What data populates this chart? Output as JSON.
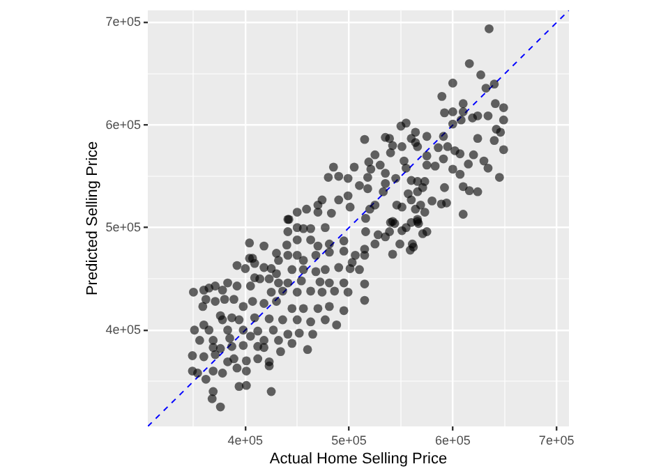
{
  "chart_data": {
    "type": "scatter",
    "xlabel": "Actual Home Selling Price",
    "ylabel": "Predicted Selling Price",
    "xlim": [
      306000,
      712000
    ],
    "ylim": [
      306000,
      712000
    ],
    "xticks": [
      {
        "value": 350000,
        "label": null
      },
      {
        "value": 400000,
        "label": "4e+05"
      },
      {
        "value": 450000,
        "label": null
      },
      {
        "value": 500000,
        "label": "5e+05"
      },
      {
        "value": 550000,
        "label": null
      },
      {
        "value": 600000,
        "label": "6e+05"
      },
      {
        "value": 650000,
        "label": null
      },
      {
        "value": 700000,
        "label": "7e+05"
      }
    ],
    "yticks": [
      {
        "value": 350000,
        "label": null
      },
      {
        "value": 400000,
        "label": "4e+05"
      },
      {
        "value": 450000,
        "label": null
      },
      {
        "value": 500000,
        "label": "5e+05"
      },
      {
        "value": 550000,
        "label": null
      },
      {
        "value": 600000,
        "label": "6e+05"
      },
      {
        "value": 650000,
        "label": null
      },
      {
        "value": 700000,
        "label": "7e+05"
      }
    ],
    "grid": true,
    "legend": false,
    "marker": "circle",
    "series": [
      {
        "color": "#000000",
        "x": [
          635000,
          616000,
          627000,
          640000,
          632000,
          600000,
          589500,
          610000,
          649000,
          641000,
          592000,
          600000,
          610000,
          619000,
          624000,
          634000,
          649000,
          608000,
          600000,
          550000,
          555000,
          564000,
          642000,
          646000,
          624000,
          640000,
          591000,
          575000,
          515000,
          535000,
          539000,
          560000,
          564000,
          542000,
          551000,
          566000,
          649000,
          586000,
          595000,
          602000,
          607000,
          620000,
          525000,
          540000,
          575000,
          519000,
          530000,
          553000,
          575000,
          591000,
          630000,
          615000,
          600000,
          634000,
          521000,
          535000,
          555000,
          583000,
          607000,
          645000,
          545000,
          560000,
          566000,
          573000,
          518000,
          518000,
          533000,
          535000,
          557000,
          566000,
          571000,
          592000,
          610000,
          616000,
          624000,
          560000,
          546000,
          551000,
          569000,
          580000,
          589000,
          594000,
          525000,
          564000,
          573000,
          520000,
          610000,
          542000,
          566000,
          566000,
          567000,
          560000,
          555000,
          551000,
          544000,
          540000,
          575000,
          571000,
          539000,
          535000,
          528000,
          549000,
          561000,
          562000,
          559000,
          542000,
          525000,
          515000,
          515000,
          515000,
          515000,
          516000,
          516000,
          441000,
          450000,
          470000,
          483000,
          441000,
          450000,
          456000,
          463000,
          477000,
          450000,
          440000,
          463000,
          470000,
          481000,
          495000,
          495000,
          506000,
          503000,
          404000,
          418000,
          430000,
          432000,
          441000,
          450000,
          456000,
          468000,
          481000,
          404000,
          409000,
          418000,
          392000,
          400000,
          425000,
          430000,
          445000,
          456000,
          468000,
          477000,
          490000,
          501000,
          510000,
          409000,
          414000,
          423000,
          432000,
          441000,
          454000,
          472000,
          481000,
          495000,
          383000,
          392000,
          405000,
          425000,
          436000,
          450000,
          463000,
          474000,
          486000,
          499000,
          350000,
          360000,
          365000,
          371000,
          378000,
          359000,
          362000,
          371000,
          380000,
          389000,
          398000,
          407000,
          418000,
          430000,
          445000,
          456000,
          470000,
          481000,
          495000,
          376000,
          378000,
          387000,
          394000,
          409000,
          423000,
          436000,
          450000,
          463000,
          477000,
          488000,
          360000,
          351000,
          365000,
          383000,
          398000,
          412000,
          427000,
          441000,
          452000,
          465000,
          356000,
          369000,
          385000,
          405000,
          418000,
          432000,
          445000,
          369000,
          376000,
          387000,
          398000,
          412000,
          418000,
          434000,
          460000,
          349000,
          360000,
          371000,
          389000,
          401000,
          412000,
          423000,
          349000,
          354000,
          369000,
          378000,
          392000,
          401000,
          423000,
          383000,
          362000,
          394000,
          401000,
          369000,
          425000,
          368000,
          376000,
          407000,
          485000,
          505000,
          480000,
          490000,
          499000,
          510000,
          499000,
          470000,
          459000,
          442000,
          474000,
          490000,
          501000
        ],
        "values": [
          694000,
          660000,
          649000,
          640000,
          636000,
          641000,
          628000,
          621000,
          617000,
          621000,
          612000,
          613000,
          613000,
          607000,
          609000,
          609000,
          605000,
          605000,
          601000,
          599000,
          602000,
          593000,
          596000,
          593000,
          587000,
          585000,
          589000,
          589000,
          586000,
          588000,
          587000,
          587000,
          583000,
          580000,
          579000,
          579000,
          576000,
          578000,
          579000,
          575000,
          572000,
          571000,
          571000,
          573000,
          570000,
          564000,
          561000,
          565000,
          561000,
          567000,
          565000,
          562000,
          557000,
          558000,
          557000,
          553000,
          558000,
          560000,
          552000,
          549000,
          548000,
          546000,
          545000,
          545000,
          549000,
          538000,
          535000,
          543000,
          533000,
          535000,
          539000,
          539000,
          540000,
          536000,
          535000,
          527000,
          522000,
          520000,
          522000,
          526000,
          523000,
          524000,
          522000,
          518000,
          515000,
          518000,
          513000,
          506000,
          508000,
          506000,
          504000,
          505000,
          500000,
          497000,
          504000,
          505000,
          496000,
          494000,
          496000,
          491000,
          493000,
          484000,
          484000,
          481000,
          478000,
          474000,
          484000,
          479000,
          473000,
          445000,
          429000,
          496000,
          509000,
          508000,
          515000,
          515000,
          514000,
          496000,
          500000,
          499000,
          499000,
          500000,
          488000,
          483000,
          488000,
          482000,
          484000,
          487000,
          477000,
          473000,
          466000,
          485000,
          482000,
          475000,
          468000,
          473000,
          473000,
          468000,
          473000,
          476000,
          470000,
          465000,
          461000,
          463000,
          460000,
          460000,
          455000,
          459000,
          459000,
          457000,
          459000,
          461000,
          460000,
          459000,
          451000,
          450000,
          450000,
          446000,
          446000,
          448000,
          447000,
          446000,
          446000,
          446000,
          443000,
          443000,
          437000,
          438000,
          437000,
          438000,
          437000,
          438000,
          437000,
          437000,
          439000,
          441000,
          443000,
          439000,
          423000,
          430000,
          428000,
          430000,
          430000,
          423000,
          428000,
          426000,
          428000,
          421000,
          421000,
          421000,
          423000,
          419000,
          414000,
          410000,
          412000,
          410000,
          412000,
          411000,
          410000,
          410000,
          408000,
          410000,
          405000,
          405000,
          400000,
          400000,
          400000,
          400000,
          399000,
          400000,
          396000,
          397000,
          396000,
          390000,
          390000,
          392000,
          394000,
          390000,
          390000,
          387000,
          383000,
          382000,
          384000,
          385000,
          384000,
          383000,
          379000,
          381000,
          375000,
          374000,
          376000,
          372000,
          370000,
          372000,
          369000,
          360000,
          358000,
          360000,
          358000,
          363000,
          360000,
          365000,
          369000,
          352000,
          345000,
          346000,
          340000,
          340000,
          333000,
          325000,
          470000,
          559000,
          559000,
          549000,
          550000,
          548000,
          541000,
          531000,
          522000,
          518000,
          508000,
          527000,
          527000,
          520000
        ]
      },
      {
        "type": "line",
        "color": "#0000ff",
        "line_style": "dashed",
        "marker": "none",
        "x": [
          306000,
          712000
        ],
        "values": [
          306000,
          712000
        ]
      }
    ]
  }
}
